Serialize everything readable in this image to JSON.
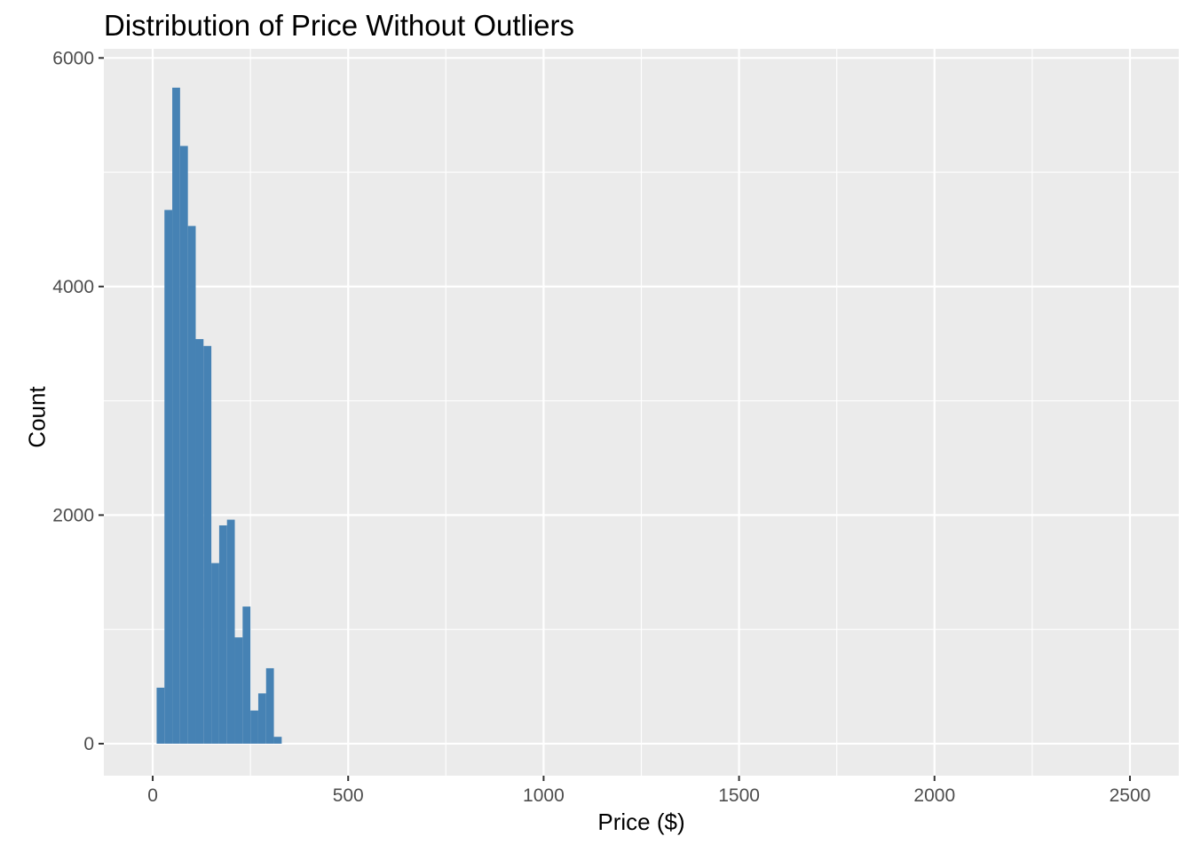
{
  "chart_data": {
    "type": "bar",
    "title": "Distribution of Price Without Outliers",
    "xlabel": "Price ($)",
    "ylabel": "Count",
    "xlim": [
      -125,
      2625
    ],
    "ylim": [
      -280,
      6080
    ],
    "x_ticks": [
      0,
      500,
      1000,
      1500,
      2000,
      2500
    ],
    "x_minor_ticks": [
      250,
      750,
      1250,
      1750,
      2250
    ],
    "y_ticks": [
      0,
      2000,
      4000,
      6000
    ],
    "y_minor_ticks": [
      1000,
      3000,
      5000
    ],
    "x_tick_labels": [
      "0",
      "500",
      "1000",
      "1500",
      "2000",
      "2500"
    ],
    "y_tick_labels": [
      "0",
      "2000",
      "4000",
      "6000"
    ],
    "grid": true,
    "bin_width": 20,
    "bins": [
      {
        "x0": 10,
        "x1": 30,
        "count": 490
      },
      {
        "x0": 30,
        "x1": 50,
        "count": 4670
      },
      {
        "x0": 50,
        "x1": 70,
        "count": 5740
      },
      {
        "x0": 70,
        "x1": 90,
        "count": 5230
      },
      {
        "x0": 90,
        "x1": 110,
        "count": 4530
      },
      {
        "x0": 110,
        "x1": 130,
        "count": 3540
      },
      {
        "x0": 130,
        "x1": 150,
        "count": 3480
      },
      {
        "x0": 150,
        "x1": 170,
        "count": 1580
      },
      {
        "x0": 170,
        "x1": 190,
        "count": 1910
      },
      {
        "x0": 190,
        "x1": 210,
        "count": 1960
      },
      {
        "x0": 210,
        "x1": 230,
        "count": 930
      },
      {
        "x0": 230,
        "x1": 250,
        "count": 1200
      },
      {
        "x0": 250,
        "x1": 270,
        "count": 290
      },
      {
        "x0": 270,
        "x1": 290,
        "count": 440
      },
      {
        "x0": 290,
        "x1": 310,
        "count": 660
      },
      {
        "x0": 310,
        "x1": 330,
        "count": 60
      }
    ],
    "colors": {
      "bar": "#4682b4",
      "panel": "#ebebeb",
      "grid": "#ffffff",
      "tick": "#333333"
    }
  }
}
